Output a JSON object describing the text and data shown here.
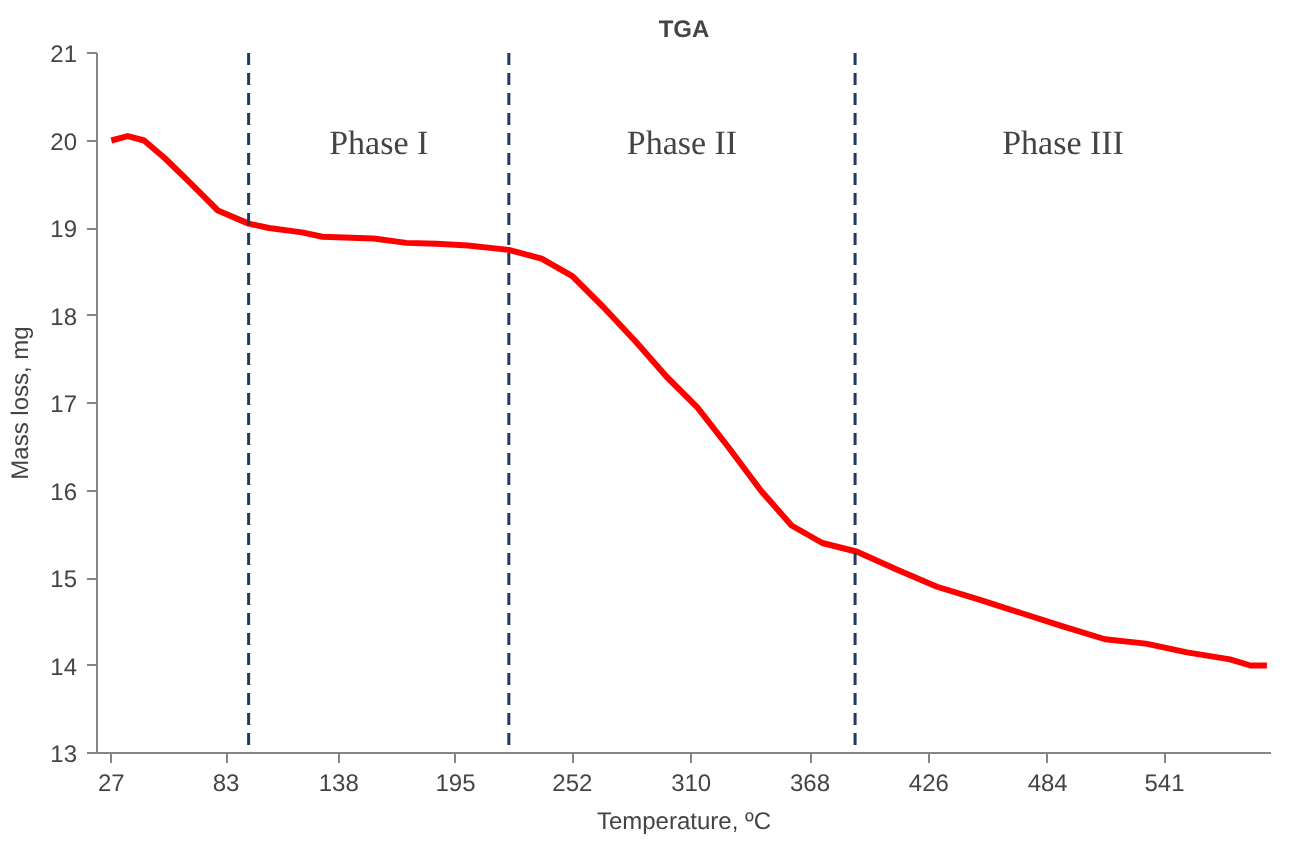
{
  "chart_data": {
    "type": "line",
    "title": "TGA",
    "xlabel": "Temperature, ºC",
    "ylabel": "Mass loss, mg",
    "x": [
      27,
      35,
      43,
      53,
      64,
      79,
      94,
      104,
      120,
      130,
      155,
      171,
      186,
      201,
      221,
      237,
      252,
      267,
      283,
      298,
      313,
      328,
      344,
      359,
      374,
      391,
      410,
      430,
      451,
      471,
      491,
      512,
      532,
      552,
      573,
      583,
      591
    ],
    "series": [
      {
        "color": "#ff0000",
        "values": [
          20.0,
          20.05,
          20.0,
          19.8,
          19.55,
          19.2,
          19.05,
          19.0,
          18.95,
          18.9,
          18.88,
          18.83,
          18.82,
          18.8,
          18.75,
          18.65,
          18.45,
          18.1,
          17.7,
          17.3,
          16.95,
          16.5,
          16.0,
          15.6,
          15.4,
          15.3,
          15.1,
          14.9,
          14.75,
          14.6,
          14.45,
          14.3,
          14.25,
          14.15,
          14.07,
          14.0,
          14.0
        ]
      }
    ],
    "xlim": [
      20,
      593
    ],
    "xticks": [
      27,
      83,
      138,
      195,
      252,
      310,
      368,
      426,
      484,
      541
    ],
    "ylim": [
      13,
      21
    ],
    "yticks": [
      13,
      14,
      15,
      16,
      17,
      18,
      19,
      20,
      21
    ],
    "grid": false,
    "marker": "none",
    "line_style": "solid",
    "ref_lines": [
      {
        "axis": "x",
        "value": 94,
        "color": "#1f3864",
        "line_style": "dashed"
      },
      {
        "axis": "x",
        "value": 221,
        "color": "#1f3864",
        "line_style": "dashed"
      },
      {
        "axis": "x",
        "value": 390,
        "color": "#1f3864",
        "line_style": "dashed"
      }
    ],
    "annotations": [
      "Phase I",
      "Phase II",
      "Phase III"
    ]
  }
}
